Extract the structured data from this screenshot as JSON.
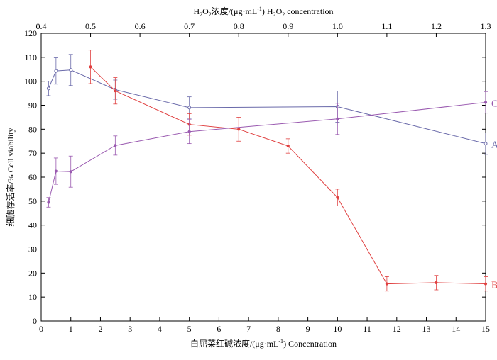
{
  "chart_data": {
    "type": "line",
    "bottom_axis": {
      "label_prefix": "白屈菜红碱浓度/(μg·mL",
      "label_sup": "-1",
      "label_suffix": ") Concentration",
      "range": [
        0,
        15
      ],
      "ticks": [
        "0",
        "1",
        "2",
        "3",
        "4",
        "5",
        "6",
        "7",
        "8",
        "9",
        "10",
        "11",
        "12",
        "13",
        "14",
        "15"
      ]
    },
    "top_axis": {
      "label_a": "H",
      "label_a_sub": "2",
      "label_b": "O",
      "label_b_sub": "2",
      "label_c": "浓度/(μg·mL",
      "label_c_sup": "-1",
      "label_d": ") H",
      "label_d_sub": "2",
      "label_e": "O",
      "label_e_sub": "2",
      "label_f": " concentration",
      "range": [
        0.4,
        1.3
      ],
      "ticks": [
        "0.4",
        "0.5",
        "0.6",
        "0.7",
        "0.8",
        "0.9",
        "1.0",
        "1.1",
        "1.2",
        "1.3"
      ]
    },
    "left_axis": {
      "label": "细胞存活率/% Cell viability",
      "range": [
        0,
        120
      ],
      "ticks": [
        "0",
        "10",
        "20",
        "30",
        "40",
        "50",
        "60",
        "70",
        "80",
        "90",
        "100",
        "110",
        "120"
      ]
    },
    "series": [
      {
        "name": "A",
        "axis": "bottom",
        "color": "#6a6aaa",
        "x": [
          0.25,
          0.5,
          1,
          2.5,
          5,
          10,
          15
        ],
        "y": [
          97,
          104.3,
          104.7,
          96.5,
          89,
          89.4,
          74
        ],
        "err": [
          3,
          5.5,
          6.5,
          4,
          4.5,
          6.5,
          4.5
        ]
      },
      {
        "name": "B",
        "axis": "top",
        "color": "#e04040",
        "x": [
          0.5,
          0.55,
          0.7,
          0.8,
          0.9,
          1.0,
          1.1,
          1.2,
          1.3
        ],
        "y": [
          106,
          96,
          82,
          80,
          73,
          51.5,
          15.5,
          16,
          15.5
        ],
        "err": [
          7,
          5.5,
          4.5,
          5,
          3,
          3.5,
          3,
          3,
          3
        ]
      },
      {
        "name": "C",
        "axis": "bottom",
        "color": "#9a5ab0",
        "x": [
          0.25,
          0.5,
          1,
          2.5,
          5,
          10,
          15
        ],
        "y": [
          49.5,
          62.5,
          62.3,
          73.2,
          79,
          84.3,
          91.2
        ],
        "err": [
          2,
          5.5,
          6.5,
          4,
          5,
          6.5,
          4.5
        ]
      }
    ]
  }
}
